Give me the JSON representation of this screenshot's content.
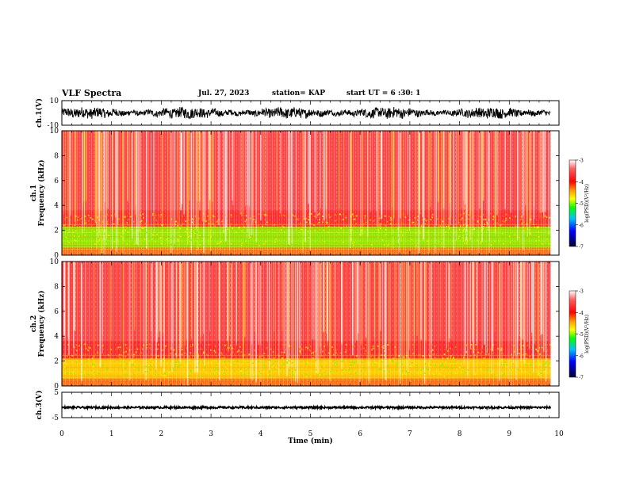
{
  "header": {
    "title": "VLF Spectra",
    "date": "Jul. 27, 2023",
    "station": "station= KAP",
    "start_ut": "start UT = 6 :30: 1"
  },
  "chart_data": [
    {
      "type": "line",
      "panel": "ch1-waveform",
      "ylabel": "ch.1(V)",
      "ylim": [
        -10,
        10
      ],
      "yticks": [
        "10",
        "-10"
      ],
      "xlim": [
        0,
        10
      ],
      "description_series": {
        "mean": 0,
        "amplitude": 5.5
      }
    },
    {
      "type": "heatmap",
      "panel": "ch1-spectrogram",
      "ylabel_line1": "ch.1",
      "ylabel_line2": "Frequency (kHz)",
      "ylim": [
        0,
        10
      ],
      "yticks": [
        "0",
        "2",
        "4",
        "6",
        "8",
        "10"
      ],
      "xlim": [
        0,
        9.83
      ],
      "colorbar": {
        "label": "log(PSD)(V²/Hz)",
        "range": [
          -7,
          -3
        ],
        "ticks": [
          "-3",
          "-4",
          "-5",
          "-6",
          "-7"
        ]
      },
      "bands": [
        {
          "from_khz": 0.0,
          "to_khz": 0.6,
          "level": -4.4
        },
        {
          "from_khz": 0.6,
          "to_khz": 2.3,
          "level": -5.0
        },
        {
          "from_khz": 2.3,
          "to_khz": 3.6,
          "level": -4.2
        },
        {
          "from_khz": 3.6,
          "to_khz": 10.0,
          "level": -3.4
        }
      ]
    },
    {
      "type": "heatmap",
      "panel": "ch2-spectrogram",
      "ylabel_line1": "ch.2",
      "ylabel_line2": "Frequency (kHz)",
      "ylim": [
        0,
        10
      ],
      "yticks": [
        "0",
        "2",
        "4",
        "6",
        "8",
        "10"
      ],
      "xlim": [
        0,
        9.83
      ],
      "colorbar": {
        "label": "log(PSD)(V²/Hz)",
        "range": [
          -7,
          -3
        ],
        "ticks": [
          "-3",
          "-4",
          "-5",
          "-6",
          "-7"
        ]
      },
      "bands": [
        {
          "from_khz": 0.0,
          "to_khz": 0.6,
          "level": -4.4
        },
        {
          "from_khz": 0.6,
          "to_khz": 2.2,
          "level": -4.9
        },
        {
          "from_khz": 2.2,
          "to_khz": 3.6,
          "level": -4.2
        },
        {
          "from_khz": 3.6,
          "to_khz": 10.0,
          "level": -3.3
        }
      ]
    },
    {
      "type": "line",
      "panel": "ch3-waveform",
      "ylabel": "ch.3(V)",
      "ylim": [
        -5,
        5
      ],
      "yticks": [
        "5",
        "-5"
      ],
      "xlim": [
        0,
        10
      ],
      "description_series": {
        "mean": -1,
        "amplitude": 0.4
      }
    }
  ],
  "xaxis": {
    "label": "Time (min)",
    "ticks": [
      "0",
      "1",
      "2",
      "3",
      "4",
      "5",
      "6",
      "7",
      "8",
      "9",
      "10"
    ],
    "range": [
      0,
      10
    ]
  },
  "colors": {
    "background_high": "#ff3030",
    "mid": "#ffcc00",
    "low": "#66ff00",
    "axes": "#000000"
  }
}
